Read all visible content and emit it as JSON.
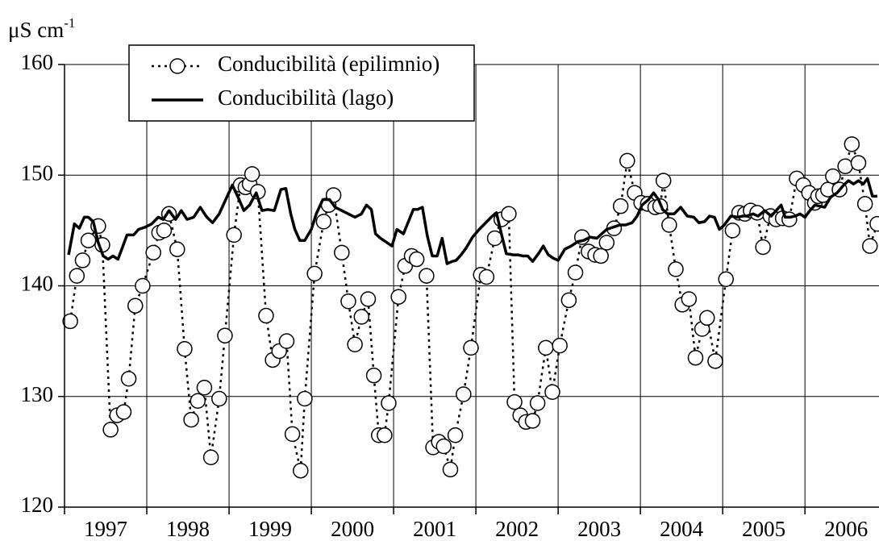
{
  "chart_data": {
    "type": "line",
    "y_label": {
      "base": "μS cm",
      "sup": "-1"
    },
    "xlim": [
      1997,
      2006.9
    ],
    "ylim": [
      120,
      160
    ],
    "yticks": [
      120,
      130,
      140,
      150,
      160
    ],
    "xticks": [
      {
        "value": 1997.5,
        "label": "1997"
      },
      {
        "value": 1998.5,
        "label": "1998"
      },
      {
        "value": 1999.5,
        "label": "1999"
      },
      {
        "value": 2000.5,
        "label": "2000"
      },
      {
        "value": 2001.5,
        "label": "2001"
      },
      {
        "value": 2002.5,
        "label": "2002"
      },
      {
        "value": 2003.5,
        "label": "2003"
      },
      {
        "value": 2004.5,
        "label": "2004"
      },
      {
        "value": 2005.5,
        "label": "2005"
      },
      {
        "value": 2006.5,
        "label": "2006"
      }
    ],
    "xgrid": [
      1997,
      1998,
      1999,
      2000,
      2001,
      2002,
      2003,
      2004,
      2005,
      2006
    ],
    "grid": true,
    "legend": "top-left",
    "series": [
      {
        "name": "Conducibilità (epilimnio)",
        "color": "#000000",
        "line": "dotted",
        "marker": "circle",
        "x": [
          1997.07,
          1997.15,
          1997.22,
          1997.29,
          1997.41,
          1997.46,
          1997.56,
          1997.64,
          1997.72,
          1997.78,
          1997.86,
          1997.95,
          1998.08,
          1998.15,
          1998.21,
          1998.27,
          1998.37,
          1998.46,
          1998.54,
          1998.62,
          1998.7,
          1998.78,
          1998.88,
          1998.95,
          1999.06,
          1999.14,
          1999.2,
          1999.25,
          1999.28,
          1999.35,
          1999.45,
          1999.53,
          1999.61,
          1999.7,
          1999.77,
          1999.87,
          1999.92,
          2000.04,
          2000.15,
          2000.21,
          2000.27,
          2000.37,
          2000.45,
          2000.53,
          2000.61,
          2000.69,
          2000.76,
          2000.82,
          2000.89,
          2000.94,
          2001.06,
          2001.14,
          2001.22,
          2001.28,
          2001.4,
          2001.48,
          2001.55,
          2001.61,
          2001.69,
          2001.75,
          2001.85,
          2001.94,
          2002.06,
          2002.13,
          2002.23,
          2002.31,
          2002.4,
          2002.47,
          2002.54,
          2002.61,
          2002.69,
          2002.75,
          2002.85,
          2002.93,
          2003.02,
          2003.13,
          2003.21,
          2003.29,
          2003.37,
          2003.45,
          2003.52,
          2003.59,
          2003.68,
          2003.76,
          2003.84,
          2003.93,
          2004.01,
          2004.09,
          2004.18,
          2004.24,
          2004.28,
          2004.35,
          2004.43,
          2004.51,
          2004.59,
          2004.67,
          2004.75,
          2004.81,
          2004.91,
          2005.04,
          2005.12,
          2005.2,
          2005.27,
          2005.34,
          2005.42,
          2005.49,
          2005.58,
          2005.65,
          2005.73,
          2005.81,
          2005.9,
          2005.98,
          2006.05,
          2006.12,
          2006.16,
          2006.22,
          2006.28,
          2006.34,
          2006.42,
          2006.49,
          2006.57,
          2006.65,
          2006.73,
          2006.79,
          2006.88
        ],
        "values": [
          136.8,
          140.9,
          142.3,
          144.1,
          145.4,
          143.7,
          127.0,
          128.3,
          128.6,
          131.6,
          138.2,
          140.0,
          143.0,
          144.8,
          145.0,
          146.5,
          143.3,
          134.3,
          127.9,
          129.6,
          130.8,
          124.5,
          129.8,
          135.5,
          144.6,
          149.1,
          148.9,
          149.2,
          150.1,
          148.5,
          137.3,
          133.3,
          134.1,
          135.0,
          126.6,
          123.3,
          129.8,
          141.1,
          145.8,
          147.3,
          148.2,
          143.0,
          138.6,
          134.7,
          137.2,
          138.8,
          131.9,
          126.5,
          126.5,
          129.4,
          139.0,
          141.8,
          142.7,
          142.4,
          140.9,
          125.4,
          125.9,
          125.5,
          123.4,
          126.5,
          130.2,
          134.4,
          141.0,
          140.8,
          144.3,
          146.0,
          146.5,
          129.5,
          128.3,
          127.7,
          127.8,
          129.4,
          134.4,
          130.4,
          134.6,
          138.7,
          141.2,
          144.4,
          143.1,
          142.8,
          142.7,
          143.9,
          145.2,
          147.2,
          151.3,
          148.4,
          147.5,
          147.4,
          147.1,
          147.2,
          149.5,
          145.5,
          141.5,
          138.3,
          138.8,
          133.5,
          136.1,
          137.1,
          133.2,
          140.6,
          145.0,
          146.6,
          146.5,
          146.8,
          146.6,
          143.5,
          146.3,
          146.0,
          146.1,
          146.0,
          149.7,
          149.1,
          148.4,
          147.5,
          148.1,
          148.2,
          148.7,
          149.9,
          148.7,
          150.8,
          152.8,
          151.1,
          147.4,
          143.6,
          145.6
        ]
      },
      {
        "name": "Conducibilità (lago)",
        "color": "#000000",
        "line": "solid",
        "marker": "none",
        "x": [
          1997.05,
          1997.12,
          1997.18,
          1997.24,
          1997.29,
          1997.35,
          1997.41,
          1997.47,
          1997.53,
          1997.59,
          1997.65,
          1997.71,
          1997.76,
          1997.84,
          1997.9,
          1997.98,
          1998.06,
          1998.14,
          1998.2,
          1998.27,
          1998.35,
          1998.42,
          1998.49,
          1998.57,
          1998.65,
          1998.73,
          1998.8,
          1998.88,
          1998.96,
          1999.04,
          1999.11,
          1999.18,
          1999.25,
          1999.33,
          1999.4,
          1999.47,
          1999.55,
          1999.63,
          1999.69,
          1999.75,
          1999.8,
          1999.86,
          1999.92,
          2000.0,
          2000.06,
          2000.14,
          2000.22,
          2000.29,
          2000.37,
          2000.45,
          2000.53,
          2000.61,
          2000.67,
          2000.73,
          2000.78,
          2000.84,
          2000.9,
          2000.98,
          2001.04,
          2001.12,
          2001.18,
          2001.24,
          2001.29,
          2001.35,
          2001.41,
          2001.47,
          2001.53,
          2001.59,
          2001.65,
          2001.71,
          2001.76,
          2001.82,
          2001.88,
          2001.96,
          2002.04,
          2002.12,
          2002.2,
          2002.25,
          2002.31,
          2002.37,
          2002.45,
          2002.51,
          2002.57,
          2002.63,
          2002.69,
          2002.76,
          2002.82,
          2002.88,
          2002.94,
          2003.0,
          2003.08,
          2003.16,
          2003.24,
          2003.31,
          2003.39,
          2003.47,
          2003.53,
          2003.59,
          2003.67,
          2003.75,
          2003.82,
          2003.9,
          2003.96,
          2004.02,
          2004.1,
          2004.16,
          2004.22,
          2004.27,
          2004.33,
          2004.41,
          2004.49,
          2004.57,
          2004.65,
          2004.71,
          2004.78,
          2004.84,
          2004.9,
          2004.96,
          2005.02,
          2005.1,
          2005.18,
          2005.24,
          2005.29,
          2005.37,
          2005.43,
          2005.51,
          2005.59,
          2005.65,
          2005.71,
          2005.76,
          2005.82,
          2005.88,
          2005.94,
          2006.0,
          2006.06,
          2006.12,
          2006.18,
          2006.24,
          2006.31,
          2006.39,
          2006.47,
          2006.53,
          2006.59,
          2006.65,
          2006.71,
          2006.76,
          2006.82,
          2006.88
        ],
        "values": [
          142.8,
          145.6,
          145.2,
          146.2,
          146.2,
          145.8,
          143.9,
          142.7,
          142.4,
          142.7,
          142.4,
          143.6,
          144.6,
          144.6,
          145.1,
          145.3,
          145.6,
          146.2,
          146.0,
          146.8,
          146.0,
          146.8,
          146.0,
          146.2,
          147.1,
          146.2,
          145.7,
          146.5,
          147.8,
          149.1,
          148.0,
          146.8,
          147.3,
          148.4,
          146.8,
          146.9,
          146.8,
          148.7,
          148.8,
          146.5,
          145.1,
          144.1,
          144.1,
          145.1,
          146.5,
          147.8,
          147.8,
          147.1,
          146.8,
          146.5,
          146.2,
          146.5,
          147.3,
          146.9,
          144.7,
          144.3,
          144.0,
          143.6,
          145.1,
          144.7,
          145.8,
          146.9,
          146.9,
          147.1,
          144.5,
          142.7,
          142.7,
          144.3,
          142.0,
          142.2,
          142.3,
          142.8,
          143.4,
          144.4,
          145.1,
          145.7,
          146.3,
          146.6,
          144.7,
          142.9,
          142.8,
          142.8,
          142.7,
          142.7,
          142.2,
          142.9,
          143.6,
          142.8,
          142.5,
          142.3,
          143.3,
          143.6,
          144.0,
          144.1,
          144.4,
          144.3,
          144.7,
          145.1,
          145.3,
          145.5,
          145.5,
          145.7,
          146.3,
          147.3,
          147.8,
          148.4,
          147.8,
          146.9,
          146.5,
          146.5,
          147.1,
          146.3,
          146.2,
          145.7,
          145.8,
          146.3,
          146.2,
          145.1,
          145.5,
          146.3,
          146.2,
          146.3,
          146.3,
          146.5,
          146.3,
          146.8,
          146.3,
          146.8,
          147.3,
          146.2,
          146.2,
          146.3,
          146.5,
          146.2,
          146.8,
          147.3,
          147.2,
          147.1,
          148.0,
          148.4,
          149.1,
          149.5,
          149.2,
          149.5,
          149.2,
          149.7,
          148.1,
          148.1
        ]
      }
    ]
  }
}
